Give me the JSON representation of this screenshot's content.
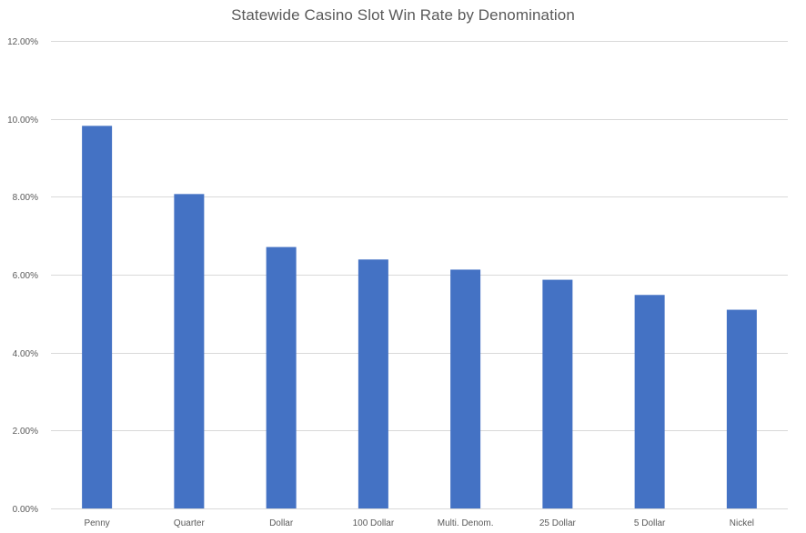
{
  "chart_data": {
    "type": "bar",
    "title": "Statewide Casino Slot Win Rate by Denomination",
    "xlabel": "",
    "ylabel": "",
    "categories": [
      "Penny",
      "Quarter",
      "Dollar",
      "100 Dollar",
      "Multi. Denom.",
      "25 Dollar",
      "5 Dollar",
      "Nickel"
    ],
    "values": [
      9.82,
      8.07,
      6.71,
      6.39,
      6.13,
      5.87,
      5.48,
      5.1
    ],
    "ylim": [
      0,
      12
    ],
    "y_ticks": [
      0,
      2,
      4,
      6,
      8,
      10,
      12
    ],
    "y_tick_labels": [
      "0.00%",
      "2.00%",
      "4.00%",
      "6.00%",
      "8.00%",
      "10.00%",
      "12.00%"
    ],
    "grid": true,
    "legend": "none",
    "bar_color": "#4472C4",
    "grid_color": "#D9D9D9"
  }
}
